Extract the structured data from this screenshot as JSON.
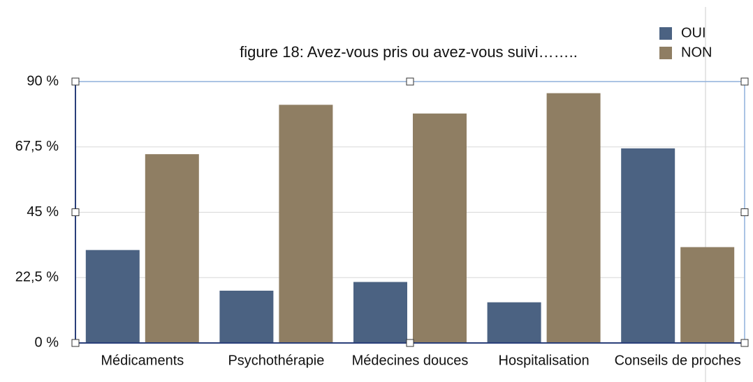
{
  "chart_data": {
    "type": "bar",
    "title": "figure 18: Avez-vous pris ou avez-vous suivi……..",
    "categories": [
      "Médicaments",
      "Psychothérapie",
      "Médecines douces",
      "Hospitalisation",
      "Conseils de proches"
    ],
    "series": [
      {
        "name": "OUI",
        "color": "#4b6282",
        "values": [
          32,
          18,
          21,
          14,
          67
        ]
      },
      {
        "name": "NON",
        "color": "#8f7e63",
        "values": [
          65,
          82,
          79,
          86,
          33
        ]
      }
    ],
    "ylim": [
      0,
      90
    ],
    "yticks": [
      {
        "value": 0,
        "label": "0 %"
      },
      {
        "value": 22.5,
        "label": "22,5 %"
      },
      {
        "value": 45,
        "label": "45 %"
      },
      {
        "value": 67.5,
        "label": "67,5 %"
      },
      {
        "value": 90,
        "label": "90 %"
      }
    ],
    "grid": true,
    "legend": "top-right"
  }
}
